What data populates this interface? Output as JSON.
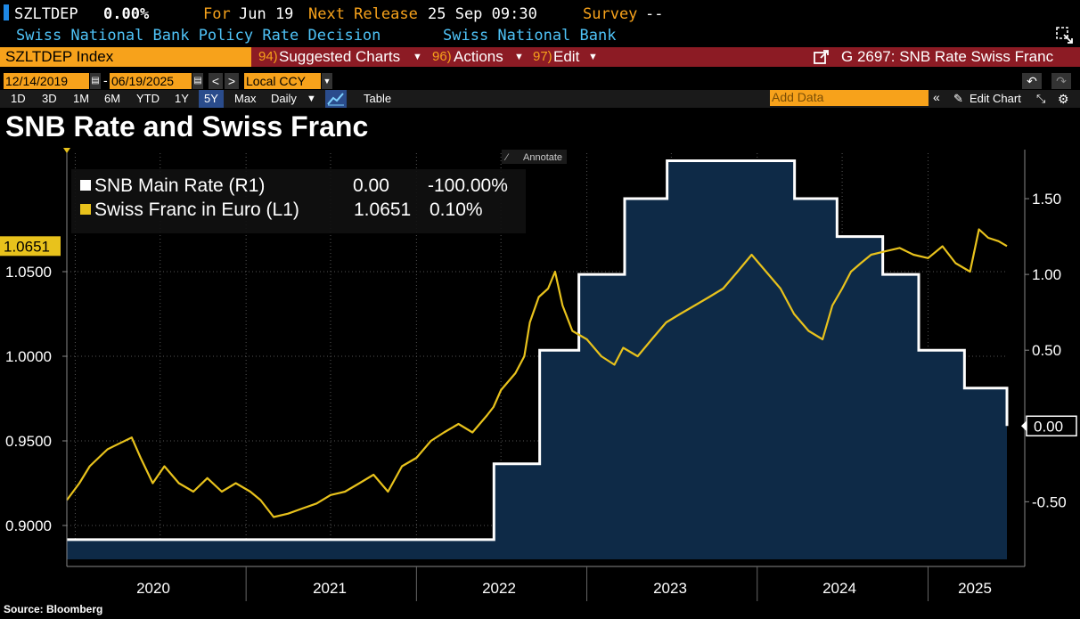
{
  "header": {
    "ticker": "SZLTDEP",
    "value": "0.00%",
    "for_label": "For",
    "for_date": "Jun 19",
    "next_release_label": "Next Release",
    "next_release": "25 Sep 09:30",
    "survey_label": "Survey",
    "survey_value": "--",
    "description": "Swiss National Bank Policy Rate Decision",
    "source_org": "Swiss National Bank"
  },
  "menubar": {
    "security": "SZLTDEP Index",
    "suggested_num": "94)",
    "suggested_label": "Suggested Charts",
    "actions_num": "96)",
    "actions_label": "Actions",
    "edit_num": "97)",
    "edit_label": "Edit",
    "chart_id": "G 2697: SNB Rate Swiss Franc"
  },
  "controls": {
    "start_date": "12/14/2019",
    "end_date": "06/19/2025",
    "currency": "Local CCY",
    "periods": [
      "1D",
      "3D",
      "1M",
      "6M",
      "YTD",
      "1Y",
      "5Y",
      "Max"
    ],
    "selected_period": "5Y",
    "frequency": "Daily",
    "table_label": "Table",
    "add_data_placeholder": "Add Data",
    "edit_chart_label": "Edit Chart",
    "annotate_label": "Annotate"
  },
  "page_title": "SNB Rate and Swiss Franc",
  "source": "Source: Bloomberg",
  "colors": {
    "accent": "#f7a21b",
    "rate_fill": "#0e2a47",
    "rate_line": "#ffffff",
    "franc_line": "#e8c21c",
    "menubar": "#8c1b24"
  },
  "legend": [
    {
      "name": "SNB Main Rate (R1)",
      "value": "0.00",
      "change": "-100.00%"
    },
    {
      "name": "Swiss Franc in Euro (L1)",
      "value": "1.0651",
      "change": "0.10%"
    }
  ],
  "chart_data": {
    "type": "line",
    "title": "SNB Rate and Swiss Franc",
    "x_range": [
      "2019-12-14",
      "2025-06-19"
    ],
    "x_ticks": [
      "2020",
      "2021",
      "2022",
      "2023",
      "2024",
      "2025"
    ],
    "left_axis": {
      "ticks": [
        "0.9000",
        "0.9500",
        "1.0000",
        "1.0500"
      ],
      "range": [
        0.88,
        1.12
      ],
      "last_value_label": "1.0651"
    },
    "right_axis": {
      "ticks": [
        "-0.50",
        "0.00",
        "0.50",
        "1.00",
        "1.50"
      ],
      "range": [
        -0.88,
        1.8
      ],
      "last_value_label": "0.00"
    },
    "grid": true,
    "legend_position": "top-left",
    "series": [
      {
        "name": "SNB Main Rate (R1)",
        "axis": "right",
        "style": "step-area",
        "points": [
          [
            "2019-12-14",
            -0.75
          ],
          [
            "2022-06-16",
            -0.25
          ],
          [
            "2022-09-22",
            0.5
          ],
          [
            "2022-12-15",
            1.0
          ],
          [
            "2023-03-23",
            1.5
          ],
          [
            "2023-06-22",
            1.75
          ],
          [
            "2024-03-21",
            1.5
          ],
          [
            "2024-06-20",
            1.25
          ],
          [
            "2024-09-26",
            1.0
          ],
          [
            "2024-12-12",
            0.5
          ],
          [
            "2025-03-20",
            0.25
          ],
          [
            "2025-06-19",
            0.0
          ]
        ]
      },
      {
        "name": "Swiss Franc in Euro (L1)",
        "axis": "left",
        "style": "line",
        "points": [
          [
            "2019-12-14",
            0.915
          ],
          [
            "2020-01-10",
            0.925
          ],
          [
            "2020-02-01",
            0.935
          ],
          [
            "2020-02-20",
            0.94
          ],
          [
            "2020-03-10",
            0.945
          ],
          [
            "2020-04-01",
            0.948
          ],
          [
            "2020-05-01",
            0.952
          ],
          [
            "2020-05-20",
            0.94
          ],
          [
            "2020-06-15",
            0.925
          ],
          [
            "2020-07-10",
            0.935
          ],
          [
            "2020-08-10",
            0.925
          ],
          [
            "2020-09-10",
            0.92
          ],
          [
            "2020-10-10",
            0.928
          ],
          [
            "2020-11-10",
            0.92
          ],
          [
            "2020-12-10",
            0.925
          ],
          [
            "2021-01-10",
            0.92
          ],
          [
            "2021-02-01",
            0.915
          ],
          [
            "2021-03-01",
            0.905
          ],
          [
            "2021-04-01",
            0.907
          ],
          [
            "2021-05-01",
            0.91
          ],
          [
            "2021-06-01",
            0.913
          ],
          [
            "2021-07-01",
            0.918
          ],
          [
            "2021-08-01",
            0.92
          ],
          [
            "2021-09-01",
            0.925
          ],
          [
            "2021-10-01",
            0.93
          ],
          [
            "2021-11-01",
            0.92
          ],
          [
            "2021-12-01",
            0.935
          ],
          [
            "2022-01-01",
            0.94
          ],
          [
            "2022-02-01",
            0.95
          ],
          [
            "2022-03-01",
            0.955
          ],
          [
            "2022-04-01",
            0.96
          ],
          [
            "2022-05-01",
            0.955
          ],
          [
            "2022-06-01",
            0.965
          ],
          [
            "2022-06-15",
            0.97
          ],
          [
            "2022-07-01",
            0.98
          ],
          [
            "2022-08-01",
            0.99
          ],
          [
            "2022-08-20",
            1.0
          ],
          [
            "2022-09-01",
            1.02
          ],
          [
            "2022-09-20",
            1.035
          ],
          [
            "2022-10-10",
            1.04
          ],
          [
            "2022-10-25",
            1.05
          ],
          [
            "2022-11-10",
            1.03
          ],
          [
            "2022-12-01",
            1.015
          ],
          [
            "2023-01-01",
            1.01
          ],
          [
            "2023-02-01",
            1.0
          ],
          [
            "2023-03-01",
            0.995
          ],
          [
            "2023-03-20",
            1.005
          ],
          [
            "2023-04-20",
            1.0
          ],
          [
            "2023-05-20",
            1.01
          ],
          [
            "2023-06-20",
            1.02
          ],
          [
            "2023-07-20",
            1.025
          ],
          [
            "2023-08-20",
            1.03
          ],
          [
            "2023-09-20",
            1.035
          ],
          [
            "2023-10-20",
            1.04
          ],
          [
            "2023-11-20",
            1.05
          ],
          [
            "2023-12-20",
            1.06
          ],
          [
            "2024-01-20",
            1.05
          ],
          [
            "2024-02-20",
            1.04
          ],
          [
            "2024-03-20",
            1.025
          ],
          [
            "2024-04-20",
            1.015
          ],
          [
            "2024-05-20",
            1.01
          ],
          [
            "2024-06-10",
            1.03
          ],
          [
            "2024-07-01",
            1.04
          ],
          [
            "2024-07-20",
            1.05
          ],
          [
            "2024-08-10",
            1.055
          ],
          [
            "2024-09-01",
            1.06
          ],
          [
            "2024-10-01",
            1.062
          ],
          [
            "2024-11-01",
            1.064
          ],
          [
            "2024-12-01",
            1.06
          ],
          [
            "2025-01-01",
            1.058
          ],
          [
            "2025-02-01",
            1.065
          ],
          [
            "2025-03-01",
            1.055
          ],
          [
            "2025-04-01",
            1.05
          ],
          [
            "2025-04-20",
            1.075
          ],
          [
            "2025-05-10",
            1.07
          ],
          [
            "2025-06-01",
            1.068
          ],
          [
            "2025-06-19",
            1.0651
          ]
        ]
      }
    ]
  }
}
